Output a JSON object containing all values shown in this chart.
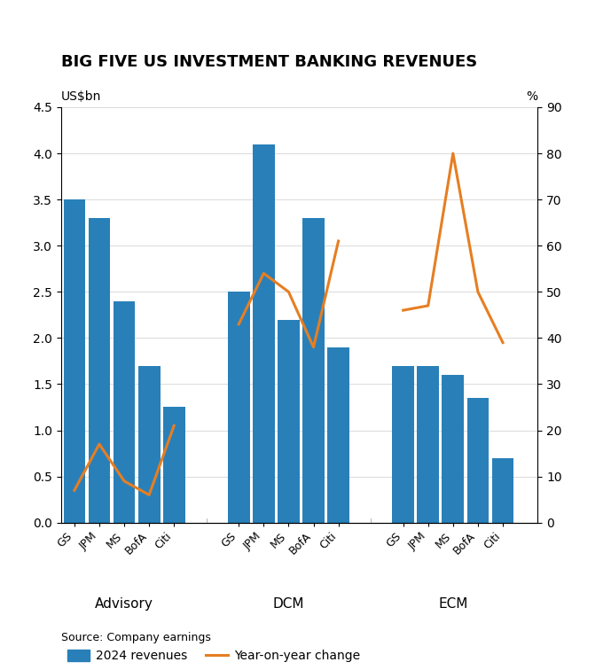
{
  "title": "BIG FIVE US INVESTMENT BANKING REVENUES",
  "ylabel_left": "US$bn",
  "ylabel_right": "%",
  "source": "Source: Company earnings",
  "groups": [
    "Advisory",
    "DCM",
    "ECM"
  ],
  "banks": [
    "GS",
    "JPM",
    "MS",
    "BofA",
    "Citi"
  ],
  "bar_values": {
    "Advisory": [
      3.5,
      3.3,
      2.4,
      1.7,
      1.25
    ],
    "DCM": [
      2.5,
      4.1,
      2.2,
      3.3,
      1.9
    ],
    "ECM": [
      1.7,
      1.7,
      1.6,
      1.35,
      0.7
    ]
  },
  "line_values": {
    "Advisory": [
      7,
      17,
      9,
      6,
      21
    ],
    "DCM": [
      43,
      54,
      50,
      38,
      61
    ],
    "ECM": [
      46,
      47,
      80,
      50,
      39
    ]
  },
  "bar_color": "#2980b9",
  "line_color": "#e67e22",
  "ylim_left": [
    0,
    4.5
  ],
  "ylim_right": [
    0,
    90
  ],
  "yticks_left": [
    0.0,
    0.5,
    1.0,
    1.5,
    2.0,
    2.5,
    3.0,
    3.5,
    4.0,
    4.5
  ],
  "yticks_right": [
    0,
    10,
    20,
    30,
    40,
    50,
    60,
    70,
    80,
    90
  ],
  "legend_bar_label": "2024 revenues",
  "legend_line_label": "Year-on-year change"
}
